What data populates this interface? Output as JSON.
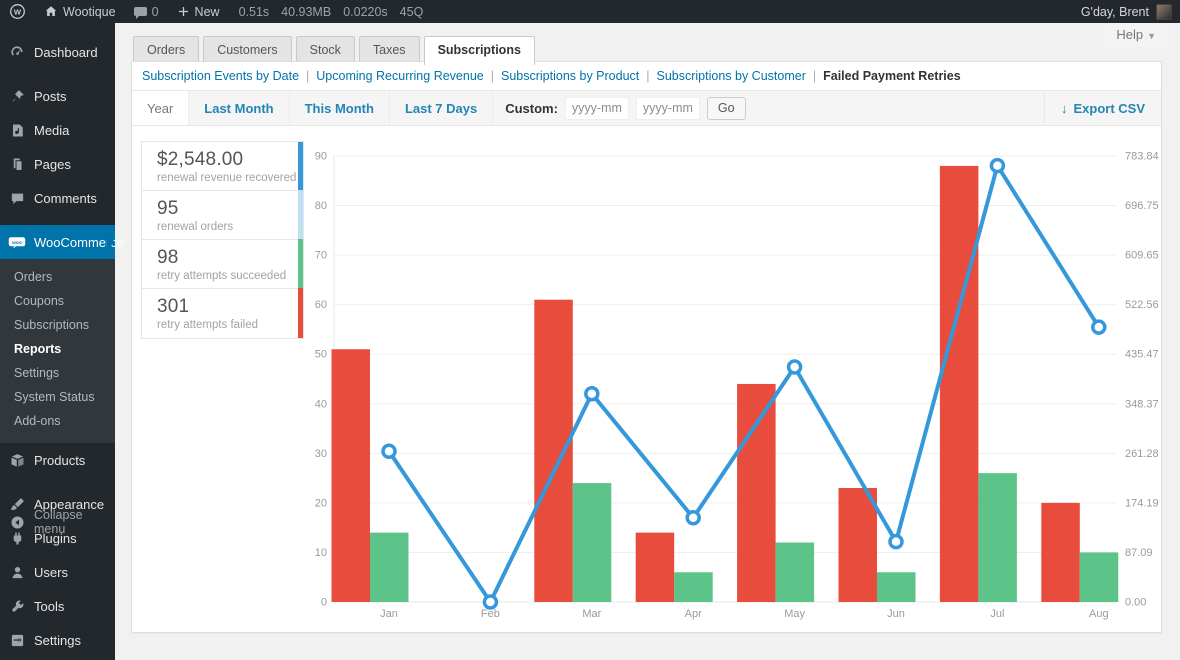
{
  "admin_bar": {
    "site_name": "Wootique",
    "comment_count": "0",
    "new_label": "New",
    "stats": [
      "0.51s",
      "40.93MB",
      "0.0220s",
      "45Q"
    ],
    "greeting": "G'day, Brent"
  },
  "help": {
    "label": "Help",
    "caret": "▼"
  },
  "sidebar": {
    "items": [
      {
        "label": "Dashboard"
      },
      {
        "label": "Posts"
      },
      {
        "label": "Media"
      },
      {
        "label": "Pages"
      },
      {
        "label": "Comments"
      },
      {
        "label": "WooCommerce",
        "active": true
      },
      {
        "label": "Products"
      },
      {
        "label": "Appearance"
      },
      {
        "label": "Plugins"
      },
      {
        "label": "Users"
      },
      {
        "label": "Tools"
      },
      {
        "label": "Settings"
      }
    ],
    "woocommerce_submenu": [
      {
        "label": "Orders"
      },
      {
        "label": "Coupons"
      },
      {
        "label": "Subscriptions"
      },
      {
        "label": "Reports",
        "current": true
      },
      {
        "label": "Settings"
      },
      {
        "label": "System Status"
      },
      {
        "label": "Add-ons"
      }
    ],
    "collapse_label": "Collapse menu"
  },
  "report_tabs": [
    {
      "label": "Orders"
    },
    {
      "label": "Customers"
    },
    {
      "label": "Stock"
    },
    {
      "label": "Taxes"
    },
    {
      "label": "Subscriptions",
      "active": true
    }
  ],
  "subnav": {
    "links": [
      {
        "label": "Subscription Events by Date"
      },
      {
        "label": "Upcoming Recurring Revenue"
      },
      {
        "label": "Subscriptions by Product"
      },
      {
        "label": "Subscriptions by Customer"
      },
      {
        "label": "Failed Payment Retries",
        "current": true
      }
    ],
    "separator": "|"
  },
  "range": {
    "year": "Year",
    "last_month": "Last Month",
    "this_month": "This Month",
    "last_7_days": "Last 7 Days",
    "custom_label": "Custom:",
    "date_placeholder": "yyyy-mm-dd",
    "go": "Go",
    "export_arrow": "↓",
    "export": "Export CSV"
  },
  "summary_cards": [
    {
      "value": "$2,548.00",
      "label": "renewal revenue recovered",
      "color": "#3498db"
    },
    {
      "value": "95",
      "label": "renewal orders",
      "color": "#bcdff2"
    },
    {
      "value": "98",
      "label": "retry attempts succeeded",
      "color": "#5cc488"
    },
    {
      "value": "301",
      "label": "retry attempts failed",
      "color": "#e74c3c"
    }
  ],
  "colors": {
    "admin_dark": "#23282d",
    "submenu_dark": "#32373c",
    "active_blue": "#0073aa",
    "link_blue": "#2385b5",
    "bar_red": "#e74c3c",
    "bar_green": "#5cc488",
    "line_blue": "#3498db",
    "grid": "#efefef",
    "axis_text": "#9a9a9a"
  },
  "chart_data": {
    "type": "bar",
    "note": "grouped bars with overlaid line, dual y-axes",
    "categories": [
      "Jan",
      "Feb",
      "Mar",
      "Apr",
      "May",
      "Jun",
      "Jul",
      "Aug"
    ],
    "series": [
      {
        "name": "retry attempts failed",
        "type": "bar",
        "axis": "left",
        "color": "#e74c3c",
        "values": [
          51,
          0,
          61,
          14,
          44,
          23,
          88,
          20
        ]
      },
      {
        "name": "retry attempts succeeded",
        "type": "bar",
        "axis": "left",
        "color": "#5cc488",
        "values": [
          14,
          0,
          24,
          6,
          12,
          6,
          26,
          10
        ]
      },
      {
        "name": "renewal revenue recovered",
        "type": "line",
        "axis": "right",
        "color": "#3498db",
        "values": [
          265,
          0,
          366,
          148,
          413,
          106,
          767,
          483
        ]
      }
    ],
    "left_axis": {
      "min": 0,
      "max": 90,
      "ticks": [
        0,
        10,
        20,
        30,
        40,
        50,
        60,
        70,
        80,
        90
      ]
    },
    "right_axis": {
      "min": 0,
      "max": 783.84,
      "tick_labels": [
        "0.00",
        "87.09",
        "174.19",
        "261.28",
        "348.37",
        "435.47",
        "522.56",
        "609.65",
        "696.75",
        "783.84"
      ]
    },
    "grid": true,
    "legend_position": "left-cards",
    "title": "",
    "xlabel": "",
    "ylabel": ""
  }
}
